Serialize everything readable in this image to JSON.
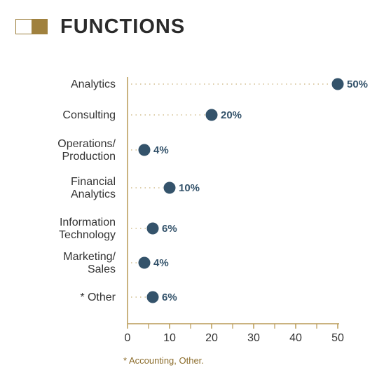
{
  "header": {
    "title": "FUNCTIONS",
    "icon": "split-square-icon",
    "accent_color": "#a0813e"
  },
  "footnote": "* Accounting, Other.",
  "colors": {
    "dot": "#34536b",
    "axis": "#b99a56",
    "leader": "#c9b27a"
  },
  "chart_data": {
    "type": "scatter",
    "orientation": "horizontal",
    "categories": [
      [
        "Analytics"
      ],
      [
        "Consulting"
      ],
      [
        "Operations/",
        "Production"
      ],
      [
        "Financial",
        "Analytics"
      ],
      [
        "Information",
        "Technology"
      ],
      [
        "Marketing/",
        "Sales"
      ],
      [
        "* Other"
      ]
    ],
    "values": [
      50,
      20,
      4,
      10,
      6,
      4,
      6
    ],
    "value_labels": [
      "50%",
      "20%",
      "4%",
      "10%",
      "6%",
      "4%",
      "6%"
    ],
    "xlim": [
      0,
      50
    ],
    "x_ticks": [
      0,
      10,
      20,
      30,
      40,
      50
    ],
    "x_tick_labels": [
      "0",
      "10",
      "20",
      "30",
      "40",
      "50"
    ],
    "minor_ticks": [
      5,
      15,
      25,
      35,
      45
    ],
    "grid": false,
    "legend": "none"
  }
}
